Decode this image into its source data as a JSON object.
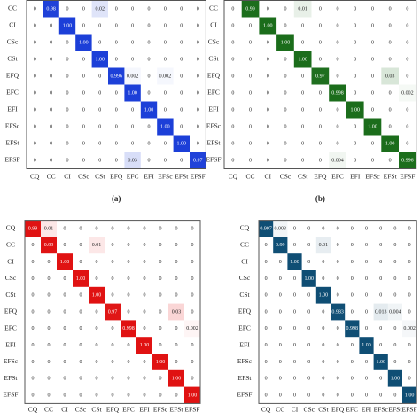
{
  "chart_data": [
    {
      "type": "heatmap",
      "color": "#1c3fd8",
      "caption": "(a)",
      "rows": [
        "CC",
        "CI",
        "CSc",
        "CSt",
        "EFQ",
        "EFC",
        "EFI",
        "EFSc",
        "EFSt",
        "EFSF"
      ],
      "columns": [
        "CQ",
        "CC",
        "CI",
        "CSc",
        "CSt",
        "EFQ",
        "EFC",
        "EFI",
        "EFSc",
        "EFSt",
        "EFSF"
      ],
      "values": [
        [
          0,
          0.98,
          0,
          0,
          0.02,
          0,
          0,
          0,
          0,
          0,
          0
        ],
        [
          0,
          0,
          1,
          0,
          0,
          0,
          0,
          0,
          0,
          0,
          0
        ],
        [
          0,
          0,
          0,
          1,
          0,
          0,
          0,
          0,
          0,
          0,
          0
        ],
        [
          0,
          0,
          0,
          0,
          1,
          0,
          0,
          0,
          0,
          0,
          0
        ],
        [
          0,
          0,
          0,
          0,
          0,
          0.996,
          0.002,
          0,
          0.002,
          0,
          0
        ],
        [
          0,
          0,
          0,
          0,
          0,
          0,
          1,
          0,
          0,
          0,
          0
        ],
        [
          0,
          0,
          0,
          0,
          0,
          0,
          0,
          1,
          0,
          0,
          0
        ],
        [
          0,
          0,
          0,
          0,
          0,
          0,
          0,
          0,
          1,
          0,
          0
        ],
        [
          0,
          0,
          0,
          0,
          0,
          0,
          0,
          0,
          0,
          1,
          0
        ],
        [
          0,
          0,
          0,
          0,
          0,
          0,
          0.03,
          0,
          0,
          0,
          0.97
        ]
      ],
      "value_labels": [
        [
          "0",
          "0.98",
          "0",
          "0",
          "0.02",
          "0",
          "0",
          "0",
          "0",
          "0",
          "0"
        ],
        [
          "0",
          "0",
          "1.00",
          "0",
          "0",
          "0",
          "0",
          "0",
          "0",
          "0",
          "0"
        ],
        [
          "0",
          "0",
          "0",
          "1.00",
          "0",
          "0",
          "0",
          "0",
          "0",
          "0",
          "0"
        ],
        [
          "0",
          "0",
          "0",
          "0",
          "1.00",
          "0",
          "0",
          "0",
          "0",
          "0",
          "0"
        ],
        [
          "0",
          "0",
          "0",
          "0",
          "0",
          "0.996",
          "0.002",
          "0",
          "0.002",
          "0",
          "0"
        ],
        [
          "0",
          "0",
          "0",
          "0",
          "0",
          "0",
          "1.00",
          "0",
          "0",
          "0",
          "0"
        ],
        [
          "0",
          "0",
          "0",
          "0",
          "0",
          "0",
          "0",
          "1.00",
          "0",
          "0",
          "0"
        ],
        [
          "0",
          "0",
          "0",
          "0",
          "0",
          "0",
          "0",
          "0",
          "1.00",
          "0",
          "0"
        ],
        [
          "0",
          "0",
          "0",
          "0",
          "0",
          "0",
          "0",
          "0",
          "0",
          "1.00",
          "0"
        ],
        [
          "0",
          "0",
          "0",
          "0",
          "0",
          "0",
          "0.03",
          "0",
          "0",
          "0",
          "0.97"
        ]
      ]
    },
    {
      "type": "heatmap",
      "color": "#1b6d1b",
      "caption": "(b)",
      "rows": [
        "CC",
        "CI",
        "CSc",
        "CSt",
        "EFQ",
        "EFC",
        "EFI",
        "EFSc",
        "EFSt",
        "EFSF"
      ],
      "columns": [
        "CQ",
        "CC",
        "CI",
        "CSc",
        "CSt",
        "EFQ",
        "EFC",
        "EFI",
        "EFSc",
        "EFSt",
        "EFSF"
      ],
      "values": [
        [
          0,
          0.99,
          0,
          0,
          0.01,
          0,
          0,
          0,
          0,
          0,
          0
        ],
        [
          0,
          0,
          1,
          0,
          0,
          0,
          0,
          0,
          0,
          0,
          0
        ],
        [
          0,
          0,
          0,
          1,
          0,
          0,
          0,
          0,
          0,
          0,
          0
        ],
        [
          0,
          0,
          0,
          0,
          1,
          0,
          0,
          0,
          0,
          0,
          0
        ],
        [
          0,
          0,
          0,
          0,
          0,
          0.97,
          0,
          0,
          0,
          0.03,
          0
        ],
        [
          0,
          0,
          0,
          0,
          0,
          0,
          0.998,
          0,
          0,
          0,
          0.002
        ],
        [
          0,
          0,
          0,
          0,
          0,
          0,
          0,
          1,
          0,
          0,
          0
        ],
        [
          0,
          0,
          0,
          0,
          0,
          0,
          0,
          0,
          1,
          0,
          0
        ],
        [
          0,
          0,
          0,
          0,
          0,
          0,
          0,
          0,
          0,
          1,
          0
        ],
        [
          0,
          0,
          0,
          0,
          0,
          0,
          0.004,
          0,
          0,
          0,
          0.996
        ]
      ],
      "value_labels": [
        [
          "0",
          "0.99",
          "0",
          "0",
          "0.01",
          "0",
          "0",
          "0",
          "0",
          "0",
          "0"
        ],
        [
          "0",
          "0",
          "1.00",
          "0",
          "0",
          "0",
          "0",
          "0",
          "0",
          "0",
          "0"
        ],
        [
          "0",
          "0",
          "0",
          "1.00",
          "0",
          "0",
          "0",
          "0",
          "0",
          "0",
          "0"
        ],
        [
          "0",
          "0",
          "0",
          "0",
          "1.00",
          "0",
          "0",
          "0",
          "0",
          "0",
          "0"
        ],
        [
          "0",
          "0",
          "0",
          "0",
          "0",
          "0.97",
          "0",
          "0",
          "0",
          "0.03",
          "0"
        ],
        [
          "0",
          "0",
          "0",
          "0",
          "0",
          "0",
          "0.998",
          "0",
          "0",
          "0",
          "0.002"
        ],
        [
          "0",
          "0",
          "0",
          "0",
          "0",
          "0",
          "0",
          "1.00",
          "0",
          "0",
          "0"
        ],
        [
          "0",
          "0",
          "0",
          "0",
          "0",
          "0",
          "0",
          "0",
          "1.00",
          "0",
          "0"
        ],
        [
          "0",
          "0",
          "0",
          "0",
          "0",
          "0",
          "0",
          "0",
          "0",
          "1.00",
          "0"
        ],
        [
          "0",
          "0",
          "0",
          "0",
          "0",
          "0",
          "0.004",
          "0",
          "0",
          "0",
          "0.996"
        ]
      ]
    },
    {
      "type": "heatmap",
      "color": "#e01212",
      "rows": [
        "CQ",
        "CC",
        "CI",
        "CSc",
        "CSt",
        "EFQ",
        "EFC",
        "EFI",
        "EFSc",
        "EFSt",
        "EFSF"
      ],
      "columns": [
        "CQ",
        "CC",
        "CI",
        "CSc",
        "CSt",
        "EFQ",
        "EFC",
        "EFI",
        "EFSc",
        "EFSt",
        "EFSF"
      ],
      "values": [
        [
          0.99,
          0.01,
          0,
          0,
          0,
          0,
          0,
          0,
          0,
          0,
          0
        ],
        [
          0,
          0.99,
          0,
          0,
          0.01,
          0,
          0,
          0,
          0,
          0,
          0
        ],
        [
          0,
          0,
          1,
          0,
          0,
          0,
          0,
          0,
          0,
          0,
          0
        ],
        [
          0,
          0,
          0,
          1,
          0,
          0,
          0,
          0,
          0,
          0,
          0
        ],
        [
          0,
          0,
          0,
          0,
          1,
          0,
          0,
          0,
          0,
          0,
          0
        ],
        [
          0,
          0,
          0,
          0,
          0,
          0.97,
          0,
          0,
          0,
          0.03,
          0
        ],
        [
          0,
          0,
          0,
          0,
          0,
          0,
          0.998,
          0,
          0,
          0,
          0.002
        ],
        [
          0,
          0,
          0,
          0,
          0,
          0,
          0,
          1,
          0,
          0,
          0
        ],
        [
          0,
          0,
          0,
          0,
          0,
          0,
          0,
          0,
          1,
          0,
          0
        ],
        [
          0,
          0,
          0,
          0,
          0,
          0,
          0,
          0,
          0,
          1,
          0
        ],
        [
          0,
          0,
          0,
          0,
          0,
          0,
          0,
          0,
          0,
          0,
          1
        ]
      ],
      "value_labels": [
        [
          "0.99",
          "0.01",
          "0",
          "0",
          "0",
          "0",
          "0",
          "0",
          "0",
          "0",
          "0"
        ],
        [
          "0",
          "0.99",
          "0",
          "0",
          "0.01",
          "0",
          "0",
          "0",
          "0",
          "0",
          "0"
        ],
        [
          "0",
          "0",
          "1.00",
          "0",
          "0",
          "0",
          "0",
          "0",
          "0",
          "0",
          "0"
        ],
        [
          "0",
          "0",
          "0",
          "1.00",
          "0",
          "0",
          "0",
          "0",
          "0",
          "0",
          "0"
        ],
        [
          "0",
          "0",
          "0",
          "0",
          "1.00",
          "0",
          "0",
          "0",
          "0",
          "0",
          "0"
        ],
        [
          "0",
          "0",
          "0",
          "0",
          "0",
          "0.97",
          "0",
          "0",
          "0",
          "0.03",
          "0"
        ],
        [
          "0",
          "0",
          "0",
          "0",
          "0",
          "0",
          "0.998",
          "0",
          "0",
          "0",
          "0.002"
        ],
        [
          "0",
          "0",
          "0",
          "0",
          "0",
          "0",
          "0",
          "1.00",
          "0",
          "0",
          "0"
        ],
        [
          "0",
          "0",
          "0",
          "0",
          "0",
          "0",
          "0",
          "0",
          "1.00",
          "0",
          "0"
        ],
        [
          "0",
          "0",
          "0",
          "0",
          "0",
          "0",
          "0",
          "0",
          "0",
          "1.00",
          "0"
        ],
        [
          "0",
          "0",
          "0",
          "0",
          "0",
          "0",
          "0",
          "0",
          "0",
          "0",
          "1.00"
        ]
      ]
    },
    {
      "type": "heatmap",
      "color": "#0f4e74",
      "rows": [
        "CQ",
        "CC",
        "CI",
        "CSc",
        "CSt",
        "EFQ",
        "EFC",
        "EFI",
        "EFSc",
        "EFSt",
        "EFSF"
      ],
      "columns": [
        "CQ",
        "CC",
        "CI",
        "CSc",
        "CSt",
        "EFQ",
        "EFC",
        "EFI",
        "EFSc",
        "EFSt",
        "EFSF"
      ],
      "values": [
        [
          0.997,
          0.003,
          0,
          0,
          0,
          0,
          0,
          0,
          0,
          0,
          0
        ],
        [
          0,
          0.99,
          0,
          0,
          0.01,
          0,
          0,
          0,
          0,
          0,
          0
        ],
        [
          0,
          0,
          1,
          0,
          0,
          0,
          0,
          0,
          0,
          0,
          0
        ],
        [
          0,
          0,
          0,
          1,
          0,
          0,
          0,
          0,
          0,
          0,
          0
        ],
        [
          0,
          0,
          0,
          0,
          1,
          0,
          0,
          0,
          0,
          0,
          0
        ],
        [
          0,
          0,
          0,
          0,
          0,
          0.983,
          0,
          0,
          0.013,
          0.004,
          0
        ],
        [
          0,
          0,
          0,
          0,
          0,
          0,
          0.998,
          0,
          0,
          0,
          0.002
        ],
        [
          0,
          0,
          0,
          0,
          0,
          0,
          0,
          1,
          0,
          0,
          0
        ],
        [
          0,
          0,
          0,
          0,
          0,
          0,
          0,
          0,
          1,
          0,
          0
        ],
        [
          0,
          0,
          0,
          0,
          0,
          0,
          0,
          0,
          0,
          1,
          0
        ],
        [
          0,
          0,
          0,
          0,
          0,
          0,
          0,
          0,
          0,
          0,
          1
        ]
      ],
      "value_labels": [
        [
          "0.997",
          "0.003",
          "0",
          "0",
          "0",
          "0",
          "0",
          "0",
          "0",
          "0",
          "0"
        ],
        [
          "0",
          "0.99",
          "0",
          "0",
          "0.01",
          "0",
          "0",
          "0",
          "0",
          "0",
          "0"
        ],
        [
          "0",
          "0",
          "1.00",
          "0",
          "0",
          "0",
          "0",
          "0",
          "0",
          "0",
          "0"
        ],
        [
          "0",
          "0",
          "0",
          "1.00",
          "0",
          "0",
          "0",
          "0",
          "0",
          "0",
          "0"
        ],
        [
          "0",
          "0",
          "0",
          "0",
          "1.00",
          "0",
          "0",
          "0",
          "0",
          "0",
          "0"
        ],
        [
          "0",
          "0",
          "0",
          "0",
          "0",
          "0.983",
          "0",
          "0",
          "0.013",
          "0.004",
          "0"
        ],
        [
          "0",
          "0",
          "0",
          "0",
          "0",
          "0",
          "0.998",
          "0",
          "0",
          "0",
          "0.002"
        ],
        [
          "0",
          "0",
          "0",
          "0",
          "0",
          "0",
          "0",
          "1.00",
          "0",
          "0",
          "0"
        ],
        [
          "0",
          "0",
          "0",
          "0",
          "0",
          "0",
          "0",
          "0",
          "1.00",
          "0",
          "0"
        ],
        [
          "0",
          "0",
          "0",
          "0",
          "0",
          "0",
          "0",
          "0",
          "0",
          "1.00",
          "0"
        ],
        [
          "0",
          "0",
          "0",
          "0",
          "0",
          "0",
          "0",
          "0",
          "0",
          "0",
          "1.00"
        ]
      ]
    }
  ]
}
